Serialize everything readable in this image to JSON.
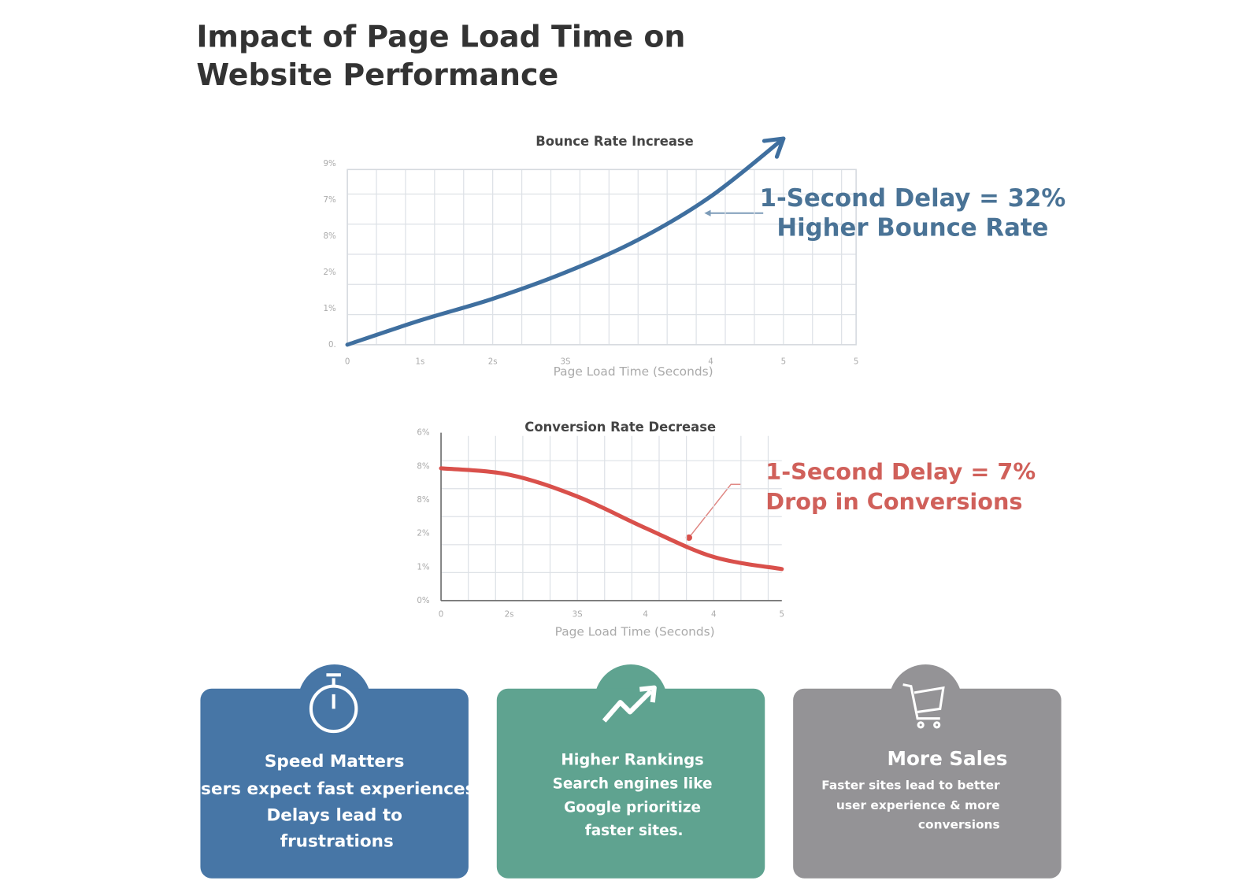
{
  "title": [
    "Impact of Page Load Time on",
    "Website Performance"
  ],
  "chart_data": [
    {
      "type": "line",
      "title": "Bounce Rate Increase",
      "categories": [
        "0",
        "1s",
        "2s",
        "3S",
        null,
        "4",
        "5",
        "5"
      ],
      "y_labels": [
        "9%",
        "7%",
        "8%",
        "2%",
        "1%",
        "0."
      ],
      "ylim": [
        0,
        5
      ],
      "values": [
        0,
        0.67,
        1.27,
        2.0,
        2.9,
        4.1,
        5.7,
        null
      ],
      "color": "#3f6f9f",
      "grid": true,
      "x_label": "Page Load Time (Seconds)",
      "annotation": [
        "1-Second Delay = 32%",
        "Higher Bounce Rate"
      ]
    },
    {
      "type": "line",
      "title": "Conversion Rate Decrease",
      "categories": [
        "0",
        "2s",
        "3S",
        "4",
        "4",
        "5"
      ],
      "y_labels": [
        "6%",
        "8%",
        "8%",
        "2%",
        "1%",
        "0%"
      ],
      "ylim": [
        0,
        5
      ],
      "values": [
        3.94,
        3.75,
        3.1,
        2.16,
        1.3,
        0.94
      ],
      "color": "#d9504b",
      "grid": true,
      "x_label": "Page Load Time (Seconds)",
      "annotation": [
        "1-Second Delay = 7%",
        "Drop in Conversions"
      ]
    }
  ],
  "cards": [
    {
      "title": "Speed Matters",
      "lines": [
        "Users expect fast experiences.",
        "Delays  lead to",
        "frustrations"
      ]
    },
    {
      "title": "Higher Rankings",
      "lines": [
        "Search engines like",
        "Google prioritize",
        "faster sites."
      ]
    },
    {
      "title": "More Sales",
      "lines": [
        "Faster sites lead to better",
        "user experience & more",
        "conversions"
      ]
    }
  ]
}
